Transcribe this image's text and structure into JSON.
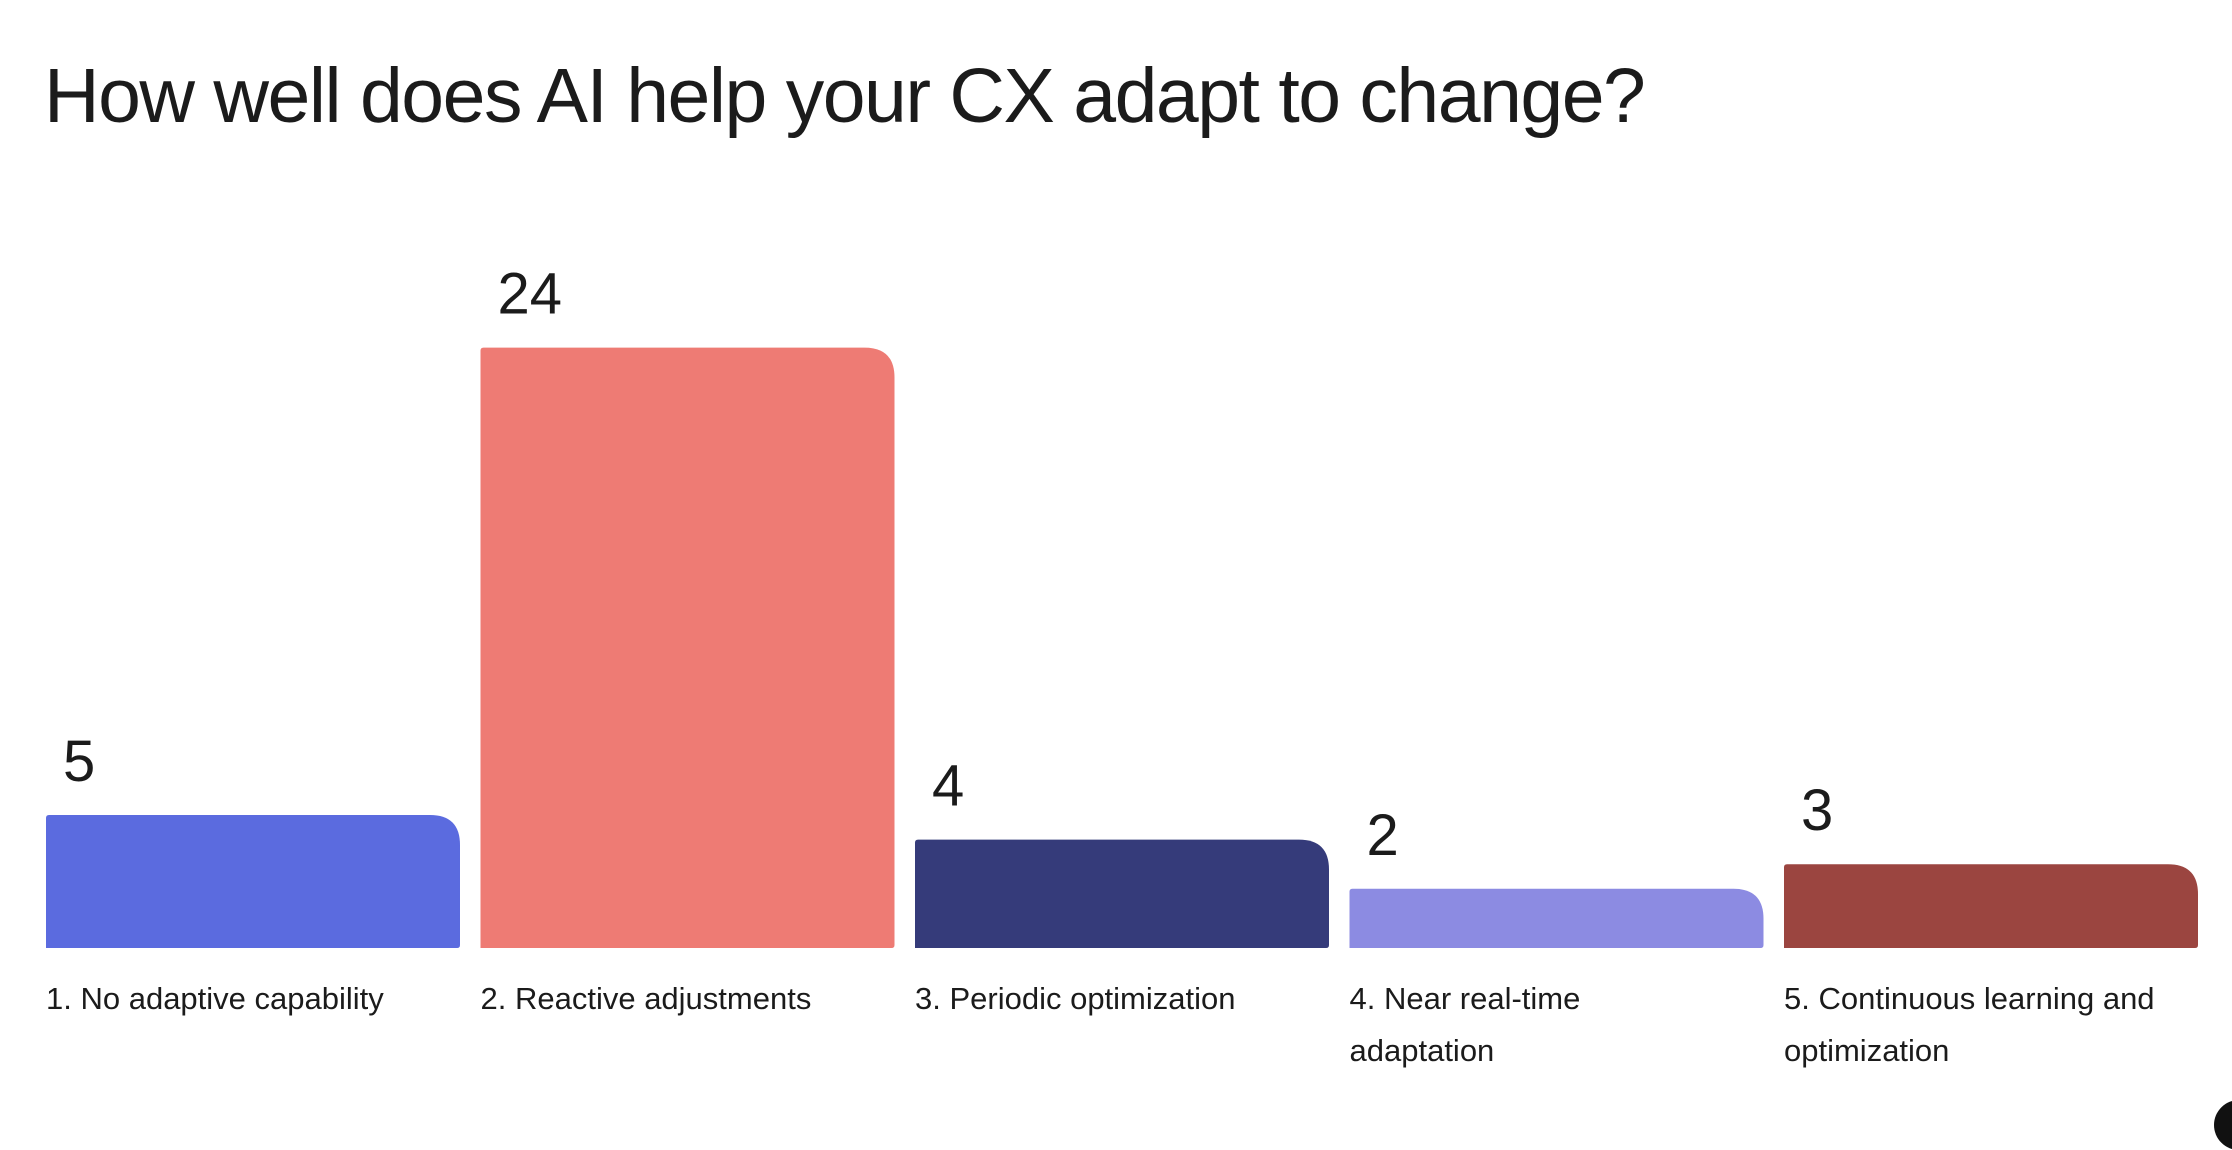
{
  "chart_data": {
    "type": "bar",
    "title": "How well does AI help your CX adapt to change?",
    "categories": [
      [
        "1. No adaptive capability"
      ],
      [
        "2. Reactive adjustments"
      ],
      [
        "3. Periodic optimization"
      ],
      [
        "4. Near real-time",
        "adaptation"
      ],
      [
        "5. Continuous learning and",
        "optimization"
      ]
    ],
    "values": [
      5,
      24,
      4,
      2,
      3
    ],
    "colors": [
      "#5B6BDF",
      "#EE7B74",
      "#353B7A",
      "#8C8BE2",
      "#9B4540"
    ],
    "xlabel": "",
    "ylabel": "",
    "grid": false,
    "legend": "none"
  }
}
